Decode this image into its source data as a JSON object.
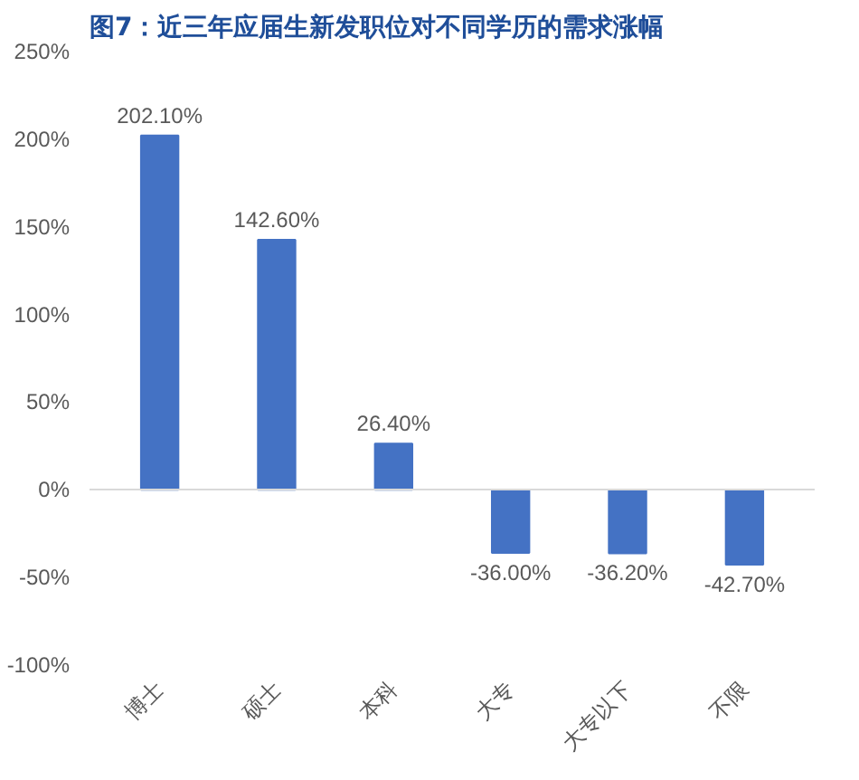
{
  "chart_data": {
    "type": "bar",
    "title": "图7：近三年应届生新发职位对不同学历的需求涨幅",
    "categories": [
      "博士",
      "硕士",
      "本科",
      "大专",
      "大专以下",
      "不限"
    ],
    "values": [
      202.1,
      142.6,
      26.4,
      -36.0,
      -36.2,
      -42.7
    ],
    "value_labels": [
      "202.10%",
      "142.60%",
      "26.40%",
      "-36.00%",
      "-36.20%",
      "-42.70%"
    ],
    "color": "#4472c4",
    "ylim": [
      -100,
      250
    ],
    "yticks": [
      {
        "value": -100,
        "label": "-100%"
      },
      {
        "value": -50,
        "label": "-50%"
      },
      {
        "value": 0,
        "label": "0%"
      },
      {
        "value": 50,
        "label": "50%"
      },
      {
        "value": 100,
        "label": "100%"
      },
      {
        "value": 150,
        "label": "150%"
      },
      {
        "value": 200,
        "label": "200%"
      },
      {
        "value": 250,
        "label": "250%"
      }
    ],
    "ref_lines": [
      {
        "axis": "y",
        "value": 0,
        "color": "#d9d9d9"
      }
    ],
    "grid": false
  }
}
